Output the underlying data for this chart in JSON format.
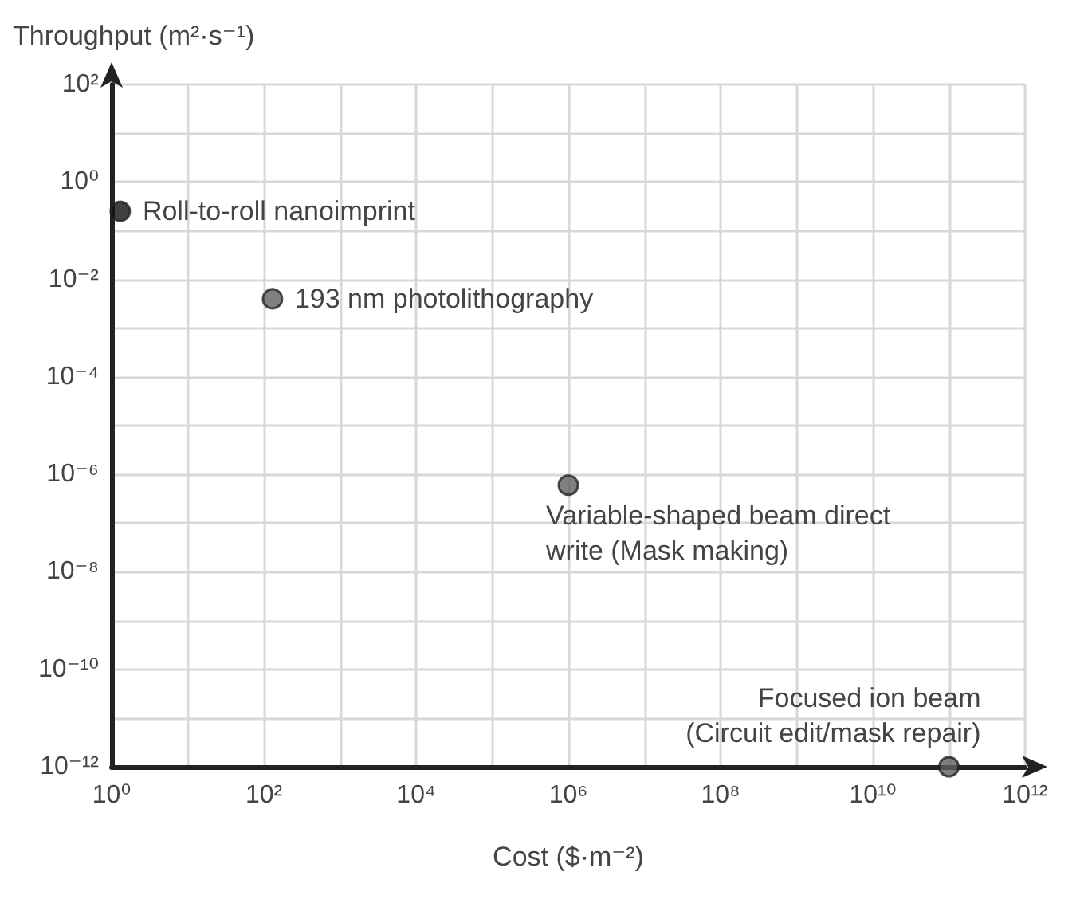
{
  "chart_data": {
    "type": "scatter",
    "xlabel": "Cost ($·m⁻²)",
    "ylabel": "Throughput (m²·s⁻¹)",
    "x": [
      1.3,
      130,
      1000000,
      100000000000
    ],
    "values": [
      0.25,
      0.004,
      6e-07,
      1e-12
    ],
    "colors": [
      "#111111",
      "#606060",
      "#606060",
      "#606060"
    ],
    "marker": "circle",
    "log": "xy",
    "grid": true,
    "xlim": [
      1,
      1000000000000
    ],
    "ylim": [
      1e-12,
      100
    ],
    "xticks": [
      {
        "value": 1,
        "label": "10⁰"
      },
      {
        "value": 10,
        "label": null
      },
      {
        "value": 100,
        "label": "10²"
      },
      {
        "value": 1000,
        "label": null
      },
      {
        "value": 10000,
        "label": "10⁴"
      },
      {
        "value": 100000,
        "label": null
      },
      {
        "value": 1000000,
        "label": "10⁶"
      },
      {
        "value": 10000000,
        "label": null
      },
      {
        "value": 100000000,
        "label": "10⁸"
      },
      {
        "value": 1000000000,
        "label": null
      },
      {
        "value": 10000000000,
        "label": "10¹⁰"
      },
      {
        "value": 100000000000,
        "label": null
      },
      {
        "value": 1000000000000,
        "label": "10¹²"
      }
    ],
    "yticks": [
      {
        "value": 1e-12,
        "label": "10⁻¹²"
      },
      {
        "value": 1e-11,
        "label": null
      },
      {
        "value": 1e-10,
        "label": "10⁻¹⁰"
      },
      {
        "value": 1e-09,
        "label": null
      },
      {
        "value": 1e-08,
        "label": "10⁻⁸"
      },
      {
        "value": 1e-07,
        "label": null
      },
      {
        "value": 1e-06,
        "label": "10⁻⁶"
      },
      {
        "value": 1e-05,
        "label": null
      },
      {
        "value": 0.0001,
        "label": "10⁻⁴"
      },
      {
        "value": 0.001,
        "label": null
      },
      {
        "value": 0.01,
        "label": "10⁻²"
      },
      {
        "value": 0.1,
        "label": null
      },
      {
        "value": 1,
        "label": "10⁰"
      },
      {
        "value": 10,
        "label": null
      },
      {
        "value": 100,
        "label": "10²"
      }
    ],
    "annotations": [
      {
        "text": "Roll-to-roll nanoimprint",
        "x": 1.3,
        "y": 0.25
      },
      {
        "text": "193 nm photolithography",
        "x": 130,
        "y": 0.004
      },
      {
        "text": "Variable-shaped beam direct\nwrite (Mask making)",
        "x": 1000000,
        "y": 6e-07
      },
      {
        "text": "Focused ion beam\n(Circuit edit/mask repair)",
        "x": 100000000000,
        "y": 1e-12
      }
    ]
  }
}
